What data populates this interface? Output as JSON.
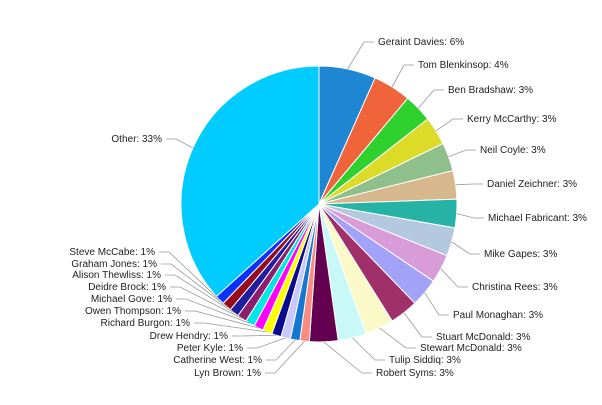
{
  "chart_data": {
    "type": "pie",
    "slices": [
      {
        "label": "Geraint Davies: 6%",
        "name": "Geraint Davies",
        "value": 6,
        "color": "#1f86d4"
      },
      {
        "label": "Tom Blenkinsop: 4%",
        "name": "Tom Blenkinsop",
        "value": 4,
        "color": "#f0643c"
      },
      {
        "label": "Ben Bradshaw: 3%",
        "name": "Ben Bradshaw",
        "value": 3,
        "color": "#2ed12e"
      },
      {
        "label": "Kerry McCarthy: 3%",
        "name": "Kerry McCarthy",
        "value": 3,
        "color": "#dcdc28"
      },
      {
        "label": "Neil Coyle: 3%",
        "name": "Neil Coyle",
        "value": 3,
        "color": "#8fbf8a"
      },
      {
        "label": "Daniel Zeichner: 3%",
        "name": "Daniel Zeichner",
        "value": 3,
        "color": "#d6b88c"
      },
      {
        "label": "Michael Fabricant: 3%",
        "name": "Michael Fabricant",
        "value": 3,
        "color": "#26b3a6"
      },
      {
        "label": "Mike Gapes: 3%",
        "name": "Mike Gapes",
        "value": 3,
        "color": "#b4c8e0"
      },
      {
        "label": "Christina Rees: 3%",
        "name": "Christina Rees",
        "value": 3,
        "color": "#d89cd8"
      },
      {
        "label": "Paul Monaghan: 3%",
        "name": "Paul Monaghan",
        "value": 3,
        "color": "#a2a2f8"
      },
      {
        "label": "Stuart McDonald: 3%",
        "name": "Stuart McDonald",
        "value": 3,
        "color": "#a0306a"
      },
      {
        "label": "Stewart McDonald: 3%",
        "name": "Stewart McDonald",
        "value": 3,
        "color": "#fafac8"
      },
      {
        "label": "Tulip Siddiq: 3%",
        "name": "Tulip Siddiq",
        "value": 3,
        "color": "#c8f8f8"
      },
      {
        "label": "Robert Syms: 3%",
        "name": "Robert Syms",
        "value": 3,
        "color": "#640050"
      },
      {
        "label": "Lyn Brown: 1%",
        "name": "Lyn Brown",
        "value": 1,
        "color": "#fa8c82"
      },
      {
        "label": "Catherine West: 1%",
        "name": "Catherine West",
        "value": 1,
        "color": "#1478d2"
      },
      {
        "label": "Peter Kyle: 1%",
        "name": "Peter Kyle",
        "value": 1,
        "color": "#c8c8ff"
      },
      {
        "label": "Drew Hendry: 1%",
        "name": "Drew Hendry",
        "value": 1,
        "color": "#0a0a8c"
      },
      {
        "label": "Richard Burgon: 1%",
        "name": "Richard Burgon",
        "value": 1,
        "color": "#ffff00"
      },
      {
        "label": "Owen Thompson: 1%",
        "name": "Owen Thompson",
        "value": 1,
        "color": "#ff00ff"
      },
      {
        "label": "Michael Gove: 1%",
        "name": "Michael Gove",
        "value": 1,
        "color": "#00e6e6"
      },
      {
        "label": "Deidre Brock: 1%",
        "name": "Deidre Brock",
        "value": 1,
        "color": "#8c1e6e"
      },
      {
        "label": "Alison Thewliss: 1%",
        "name": "Alison Thewliss",
        "value": 1,
        "color": "#1e1e9e"
      },
      {
        "label": "Graham Jones: 1%",
        "name": "Graham Jones",
        "value": 1,
        "color": "#960a1e"
      },
      {
        "label": "Steve McCabe: 1%",
        "name": "Steve McCabe",
        "value": 1,
        "color": "#0a32ff"
      },
      {
        "label": "Other: 33%",
        "name": "Other",
        "value": 33,
        "color": "#00ccff"
      }
    ]
  }
}
